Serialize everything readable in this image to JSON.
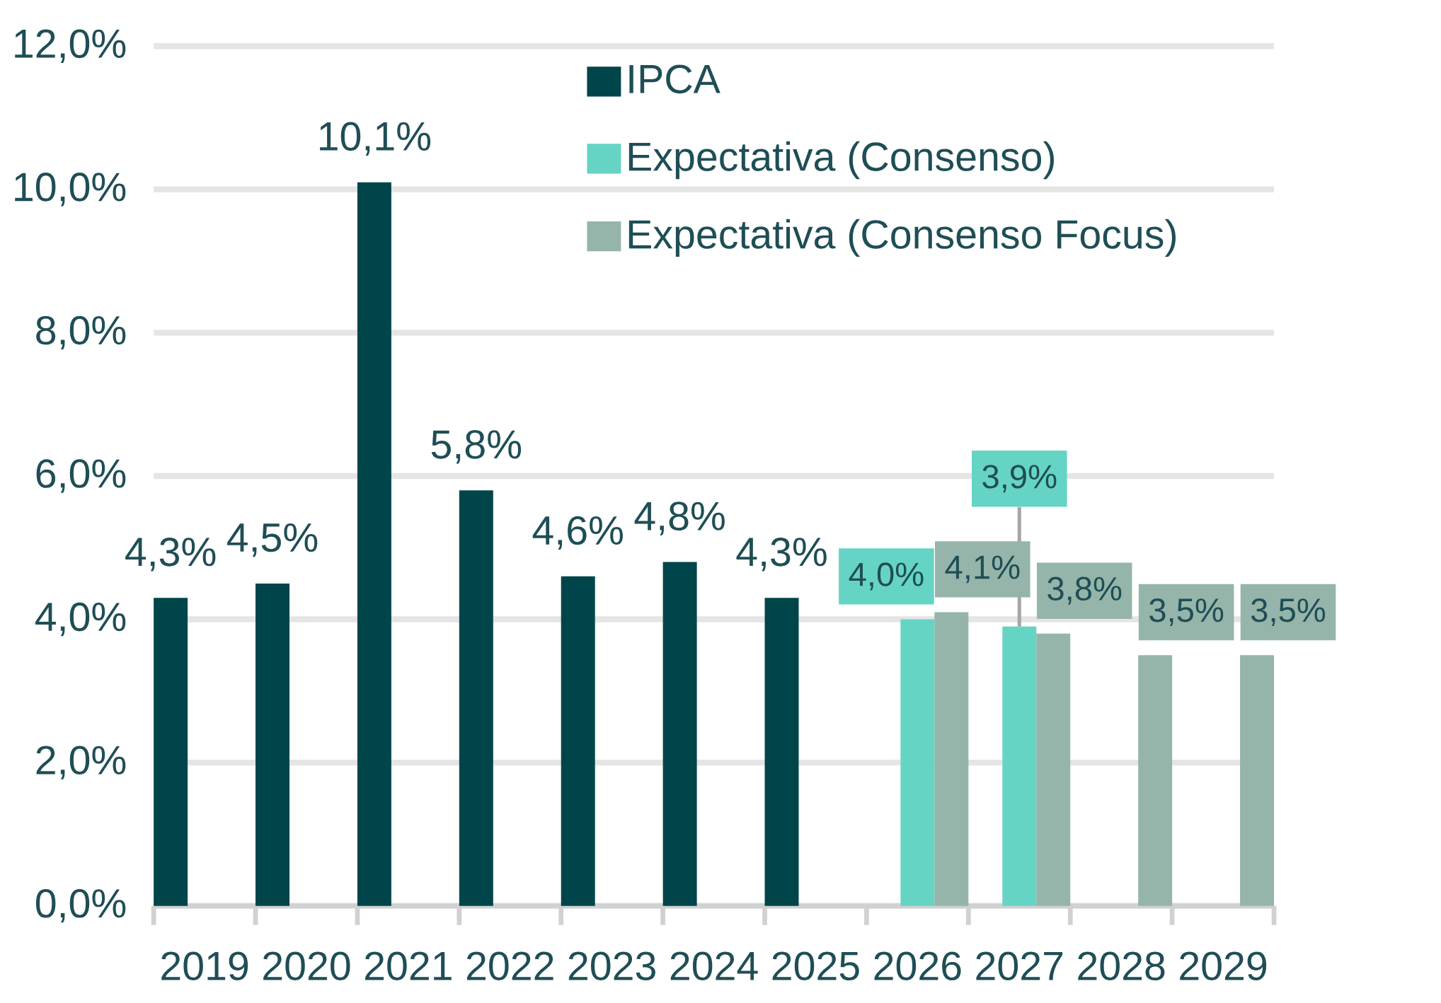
{
  "chart_data": {
    "type": "bar",
    "categories": [
      "2019",
      "2020",
      "2021",
      "2022",
      "2023",
      "2024",
      "2025",
      "2026",
      "2027",
      "2028",
      "2029"
    ],
    "series": [
      {
        "name": "IPCA",
        "color": "#00454a",
        "values": [
          4.3,
          4.5,
          10.1,
          5.8,
          4.6,
          4.8,
          4.3,
          null,
          null,
          null,
          null
        ],
        "value_labels": [
          "4,3%",
          "4,5%",
          "10,1%",
          "5,8%",
          "4,6%",
          "4,8%",
          "4,3%",
          null,
          null,
          null,
          null
        ]
      },
      {
        "name": "Expectativa (Consenso)",
        "color": "#66d4c4",
        "values": [
          null,
          null,
          null,
          null,
          null,
          null,
          null,
          4.0,
          3.9,
          null,
          null
        ],
        "value_labels": [
          null,
          null,
          null,
          null,
          null,
          null,
          null,
          "4,0%",
          "3,9%",
          null,
          null
        ]
      },
      {
        "name": "Expectativa (Consenso Focus)",
        "color": "#95b5aa",
        "values": [
          null,
          null,
          null,
          null,
          null,
          null,
          null,
          4.1,
          3.8,
          3.5,
          3.5
        ],
        "value_labels": [
          null,
          null,
          null,
          null,
          null,
          null,
          null,
          "4,1%",
          "3,8%",
          "3,5%",
          "3,5%"
        ]
      }
    ],
    "ylim": [
      0,
      12
    ],
    "yticks": [
      {
        "value": 0,
        "label": "0,0%"
      },
      {
        "value": 2,
        "label": "2,0%"
      },
      {
        "value": 4,
        "label": "4,0%"
      },
      {
        "value": 6,
        "label": "6,0%"
      },
      {
        "value": 8,
        "label": "8,0%"
      },
      {
        "value": 10,
        "label": "10,0%"
      },
      {
        "value": 12,
        "label": "12,0%"
      }
    ],
    "grid": "y",
    "legend": "top right"
  }
}
